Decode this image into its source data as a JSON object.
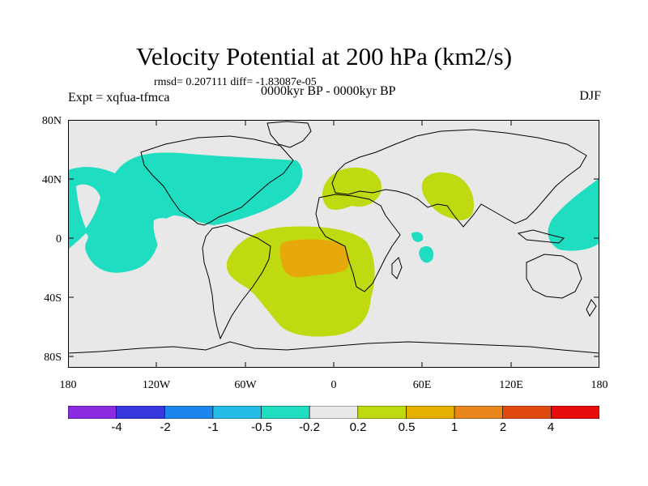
{
  "title": "Velocity Potential at 200 hPa (km2/s)",
  "stats": "rmsd= 0.207111  diff= -1.83087e-05",
  "expt": "Expt = xqfua-tfmca",
  "period": "0000kyr BP - 0000kyr BP",
  "season": "DJF",
  "lat_labels": [
    "80N",
    "40N",
    "0",
    "40S",
    "80S"
  ],
  "lon_labels": [
    "180",
    "120W",
    "60W",
    "0",
    "60E",
    "120E",
    "180"
  ],
  "colorbar": {
    "labels": [
      "-4",
      "-2",
      "-1",
      "-0.5",
      "-0.2",
      "0.2",
      "0.5",
      "1",
      "2",
      "4"
    ],
    "colors": [
      "#8A2BE2",
      "#3838E0",
      "#1C86EE",
      "#26BCE8",
      "#1EDDC0",
      "#E8E8E8",
      "#BFDA10",
      "#E6B000",
      "#E8861C",
      "#E04A10",
      "#E80C0C"
    ]
  },
  "colors": {
    "background": "#E8E8E8",
    "negative": "#1EDDC0",
    "positive": "#BFDA10",
    "strong_positive": "#E6A80A"
  }
}
